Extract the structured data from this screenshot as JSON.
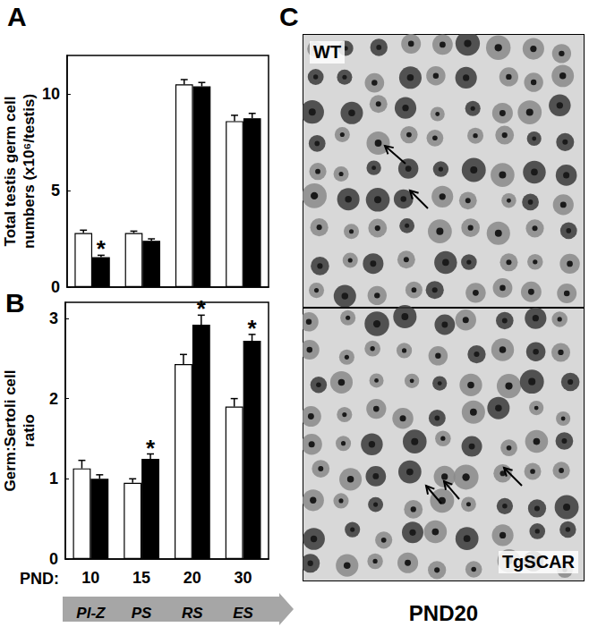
{
  "chart_data": [
    {
      "panel": "A",
      "type": "bar",
      "categories": [
        "10",
        "15",
        "20",
        "30"
      ],
      "y_label": "Total testis germ cell\nnumbers (x10⁶/testis)",
      "ylim": [
        0,
        12
      ],
      "yticks": [
        0,
        5,
        10
      ],
      "grid": false,
      "tick_labels": "y",
      "series": [
        {
          "color": "#ffffff",
          "values": [
            2.8,
            2.8,
            10.5,
            8.6
          ],
          "errors": [
            0.15,
            0.1,
            0.25,
            0.3
          ]
        },
        {
          "color": "#000000",
          "values": [
            1.55,
            2.4,
            10.4,
            8.75
          ],
          "errors": [
            0.1,
            0.1,
            0.2,
            0.25
          ]
        }
      ],
      "annotations": [
        {
          "text": "*",
          "category": "10",
          "series": 1
        }
      ]
    },
    {
      "panel": "B",
      "type": "bar",
      "categories": [
        "10",
        "15",
        "20",
        "30"
      ],
      "y_label": "Germ:Sertoli cell\nratio",
      "x_label": "PND:",
      "stage_labels": [
        "Pl-Z",
        "PS",
        "RS",
        "ES"
      ],
      "ylim": [
        0,
        3.2
      ],
      "yticks": [
        0,
        1,
        2,
        3
      ],
      "grid": false,
      "tick_labels": true,
      "series": [
        {
          "color": "#ffffff",
          "values": [
            1.13,
            0.95,
            2.43,
            1.9
          ],
          "errors": [
            0.1,
            0.05,
            0.12,
            0.1
          ]
        },
        {
          "color": "#000000",
          "values": [
            1.0,
            1.25,
            2.92,
            2.72
          ],
          "errors": [
            0.05,
            0.06,
            0.12,
            0.08
          ]
        }
      ],
      "annotations": [
        {
          "text": "*",
          "category": "15",
          "series": 1
        },
        {
          "text": "*",
          "category": "20",
          "series": 1
        },
        {
          "text": "*",
          "category": "30",
          "series": 1
        }
      ]
    }
  ],
  "image_panel": {
    "panel": "C",
    "labels": [
      "WT",
      "TgSCAR"
    ],
    "caption": "PND20"
  }
}
